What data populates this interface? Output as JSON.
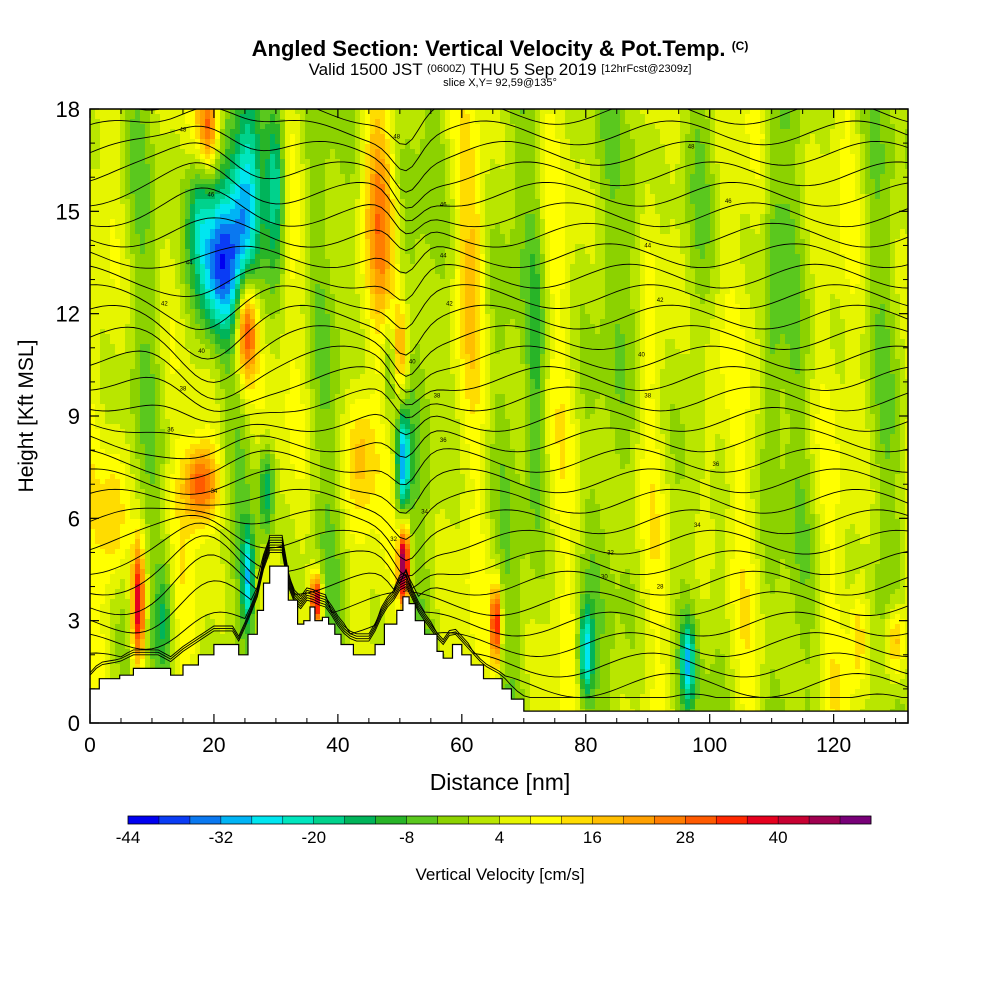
{
  "chart_data": {
    "type": "heatmap",
    "title": "Angled Section: Vertical Velocity & Pot.Temp.",
    "title_unit": "(C)",
    "subtitle_main": "Valid 1500 JST",
    "subtitle_utc": "(0600Z)",
    "subtitle_date": "THU 5 Sep 2019",
    "subtitle_fcst": "[12hrFcst@2309z]",
    "slice_label": "slice X,Y= 92,59@135°",
    "xlabel": "Distance [nm]",
    "ylabel": "Height [Kft MSL]",
    "xlim": [
      0,
      132
    ],
    "ylim": [
      0,
      18
    ],
    "x_ticks": [
      "0",
      "20",
      "40",
      "60",
      "80",
      "100",
      "120"
    ],
    "x_tick_values": [
      0,
      20,
      40,
      60,
      80,
      100,
      120
    ],
    "y_ticks": [
      "0",
      "3",
      "6",
      "9",
      "12",
      "15",
      "18"
    ],
    "y_tick_values": [
      0,
      3,
      6,
      9,
      12,
      15,
      18
    ],
    "colorbar": {
      "label": "Vertical Velocity [cm/s]",
      "tick_labels": [
        "-44",
        "-32",
        "-20",
        "-8",
        "4",
        "16",
        "28",
        "40"
      ],
      "tick_values": [
        -44,
        -32,
        -20,
        -8,
        4,
        16,
        28,
        40
      ],
      "min": -44,
      "max": 52,
      "step": 4,
      "colors": [
        "#0000f0",
        "#0a3cf5",
        "#0a78f0",
        "#00b4f5",
        "#00e6f0",
        "#00e6be",
        "#00d28c",
        "#00b45a",
        "#28b428",
        "#5ac81e",
        "#8cd200",
        "#b9e600",
        "#e6f500",
        "#ffff00",
        "#ffdc00",
        "#ffbe00",
        "#ffa000",
        "#ff7d00",
        "#ff5a00",
        "#ff2800",
        "#e6001e",
        "#c80032",
        "#a00050",
        "#780078"
      ]
    },
    "w_features": [
      {
        "x": 20.4,
        "z": 13.4,
        "sx": 4.0,
        "sz": 2.2,
        "v": -38
      },
      {
        "x": 25.5,
        "z": 15.5,
        "sx": 2.4,
        "sz": 3.0,
        "v": -30
      },
      {
        "x": 30.0,
        "z": 15.8,
        "sx": 1.6,
        "sz": 2.6,
        "v": -26
      },
      {
        "x": 28.5,
        "z": 6.8,
        "sx": 1.3,
        "sz": 1.4,
        "v": -22
      },
      {
        "x": 25.5,
        "z": 4.2,
        "sx": 1.0,
        "sz": 1.4,
        "v": -26
      },
      {
        "x": 50.5,
        "z": 7.6,
        "sx": 1.1,
        "sz": 1.6,
        "v": -32
      },
      {
        "x": 48.5,
        "z": 10.5,
        "sx": 1.3,
        "sz": 1.6,
        "v": -16
      },
      {
        "x": 80.0,
        "z": 2.0,
        "sx": 1.2,
        "sz": 1.4,
        "v": -30
      },
      {
        "x": 96.5,
        "z": 1.8,
        "sx": 1.1,
        "sz": 1.2,
        "v": -26
      },
      {
        "x": 17.5,
        "z": 15.2,
        "sx": 1.8,
        "sz": 1.5,
        "v": -14
      },
      {
        "x": 12.0,
        "z": 3.2,
        "sx": 1.4,
        "sz": 1.6,
        "v": -12
      },
      {
        "x": 72.0,
        "z": 10.5,
        "sx": 1.5,
        "sz": 5.0,
        "v": -10
      },
      {
        "x": 110.0,
        "z": 12.0,
        "sx": 1.6,
        "sz": 6.0,
        "v": -10
      },
      {
        "x": 88.0,
        "z": 14.5,
        "sx": 1.6,
        "sz": 4.0,
        "v": -8
      },
      {
        "x": 25.2,
        "z": 11.6,
        "sx": 1.8,
        "sz": 1.6,
        "v": 38
      },
      {
        "x": 18.0,
        "z": 7.0,
        "sx": 2.8,
        "sz": 1.2,
        "v": 28
      },
      {
        "x": 7.8,
        "z": 3.4,
        "sx": 1.1,
        "sz": 1.8,
        "v": 40
      },
      {
        "x": 50.7,
        "z": 4.6,
        "sx": 0.9,
        "sz": 1.2,
        "v": 48
      },
      {
        "x": 50.0,
        "z": 10.8,
        "sx": 1.4,
        "sz": 1.6,
        "v": 22
      },
      {
        "x": 47.0,
        "z": 15.0,
        "sx": 2.5,
        "sz": 2.8,
        "v": 18
      },
      {
        "x": 65.5,
        "z": 2.9,
        "sx": 0.8,
        "sz": 1.2,
        "v": 36
      },
      {
        "x": 36.5,
        "z": 3.6,
        "sx": 0.9,
        "sz": 0.8,
        "v": 40
      },
      {
        "x": 19.2,
        "z": 17.5,
        "sx": 1.6,
        "sz": 1.2,
        "v": 22
      },
      {
        "x": 44.0,
        "z": 8.0,
        "sx": 2.5,
        "sz": 1.8,
        "v": 12
      },
      {
        "x": 130.0,
        "z": 2.4,
        "sx": 1.6,
        "sz": 1.2,
        "v": 22
      },
      {
        "x": 4.0,
        "z": 6.0,
        "sx": 2.0,
        "sz": 2.0,
        "v": 12
      },
      {
        "x": 124.0,
        "z": 2.5,
        "sx": 1.5,
        "sz": 1.5,
        "v": 14
      },
      {
        "x": 100.0,
        "z": 8.5,
        "sx": 2.0,
        "sz": 4.0,
        "v": 10
      },
      {
        "x": 62.0,
        "z": 13.5,
        "sx": 2.0,
        "sz": 3.0,
        "v": 10
      }
    ],
    "terrain_points": [
      [
        0,
        1.0
      ],
      [
        1.5,
        1.3
      ],
      [
        4.8,
        1.4
      ],
      [
        7.0,
        1.6
      ],
      [
        11.0,
        1.6
      ],
      [
        13.0,
        1.4
      ],
      [
        15.0,
        1.7
      ],
      [
        17.5,
        2.0
      ],
      [
        20.0,
        2.3
      ],
      [
        23.0,
        2.3
      ],
      [
        24.0,
        2.0
      ],
      [
        25.5,
        2.6
      ],
      [
        27.0,
        3.3
      ],
      [
        28.0,
        4.1
      ],
      [
        29.0,
        4.6
      ],
      [
        31.0,
        4.6
      ],
      [
        32.0,
        3.6
      ],
      [
        33.5,
        2.9
      ],
      [
        34.5,
        3.0
      ],
      [
        35.5,
        3.4
      ],
      [
        36.3,
        3.0
      ],
      [
        37.5,
        3.1
      ],
      [
        38.5,
        2.9
      ],
      [
        39.5,
        2.6
      ],
      [
        40.5,
        2.3
      ],
      [
        42.5,
        2.0
      ],
      [
        45.0,
        2.0
      ],
      [
        46.0,
        2.3
      ],
      [
        47.5,
        2.9
      ],
      [
        49.5,
        3.3
      ],
      [
        50.5,
        3.7
      ],
      [
        51.5,
        3.5
      ],
      [
        52.5,
        3.0
      ],
      [
        54.0,
        2.6
      ],
      [
        56.0,
        2.1
      ],
      [
        57.0,
        1.9
      ],
      [
        58.5,
        2.3
      ],
      [
        60.0,
        2.0
      ],
      [
        61.5,
        1.7
      ],
      [
        63.5,
        1.3
      ],
      [
        66.5,
        1.0
      ],
      [
        68.0,
        0.7
      ],
      [
        70.0,
        0.35
      ],
      [
        75.0,
        0.35
      ],
      [
        132,
        0.35
      ]
    ],
    "theta_labels": [
      {
        "x": 15.0,
        "z": 17.4,
        "text": "48"
      },
      {
        "x": 19.5,
        "z": 15.5,
        "text": "46"
      },
      {
        "x": 16.0,
        "z": 13.5,
        "text": "44"
      },
      {
        "x": 12.0,
        "z": 12.3,
        "text": "42"
      },
      {
        "x": 18.0,
        "z": 10.9,
        "text": "40"
      },
      {
        "x": 15.0,
        "z": 9.8,
        "text": "38"
      },
      {
        "x": 13.0,
        "z": 8.6,
        "text": "36"
      },
      {
        "x": 20.0,
        "z": 6.8,
        "text": "34"
      },
      {
        "x": 49.5,
        "z": 17.2,
        "text": "48"
      },
      {
        "x": 57.0,
        "z": 15.2,
        "text": "46"
      },
      {
        "x": 57.0,
        "z": 13.7,
        "text": "44"
      },
      {
        "x": 58.0,
        "z": 12.3,
        "text": "42"
      },
      {
        "x": 52.0,
        "z": 10.6,
        "text": "40"
      },
      {
        "x": 56.0,
        "z": 9.6,
        "text": "38"
      },
      {
        "x": 57.0,
        "z": 8.3,
        "text": "36"
      },
      {
        "x": 54.0,
        "z": 6.2,
        "text": "34"
      },
      {
        "x": 49.0,
        "z": 5.4,
        "text": "32"
      },
      {
        "x": 51.0,
        "z": 3.9,
        "text": "30"
      },
      {
        "x": 97.0,
        "z": 16.9,
        "text": "48"
      },
      {
        "x": 103.0,
        "z": 15.3,
        "text": "46"
      },
      {
        "x": 90.0,
        "z": 14.0,
        "text": "44"
      },
      {
        "x": 92.0,
        "z": 12.4,
        "text": "42"
      },
      {
        "x": 89.0,
        "z": 10.8,
        "text": "40"
      },
      {
        "x": 90.0,
        "z": 9.6,
        "text": "38"
      },
      {
        "x": 101.0,
        "z": 7.6,
        "text": "36"
      },
      {
        "x": 98.0,
        "z": 5.8,
        "text": "34"
      },
      {
        "x": 84.0,
        "z": 5.0,
        "text": "32"
      },
      {
        "x": 83.0,
        "z": 4.3,
        "text": "30"
      },
      {
        "x": 92.0,
        "z": 4.0,
        "text": "28"
      }
    ]
  }
}
